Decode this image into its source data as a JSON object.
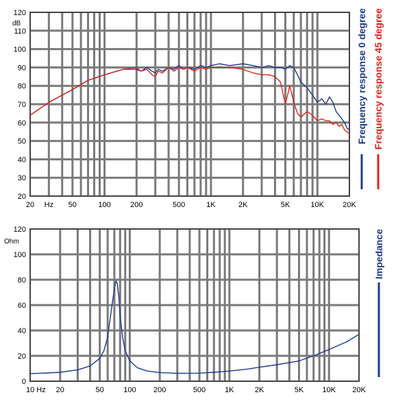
{
  "colors": {
    "frame": "#444444",
    "grid": "#7a7a7a",
    "background": "#ffffff",
    "blue": "#1f3a8f",
    "red": "#e0241c"
  },
  "chart_data": [
    {
      "type": "line",
      "x_scale": "log",
      "y_unit": "dB",
      "xlim": [
        20,
        20000
      ],
      "ylim": [
        20,
        120
      ],
      "y_ticks": [
        20,
        30,
        40,
        50,
        60,
        70,
        80,
        90,
        100,
        110,
        120
      ],
      "x_tick_labels": [
        {
          "x": 20,
          "label": "20"
        },
        {
          "x": 30,
          "label": "Hz"
        },
        {
          "x": 50,
          "label": "50"
        },
        {
          "x": 100,
          "label": "100"
        },
        {
          "x": 200,
          "label": "200"
        },
        {
          "x": 500,
          "label": "500"
        },
        {
          "x": 1000,
          "label": "1K"
        },
        {
          "x": 2000,
          "label": "2K"
        },
        {
          "x": 5000,
          "label": "5K"
        },
        {
          "x": 10000,
          "label": "10K"
        },
        {
          "x": 20000,
          "label": "20K"
        }
      ],
      "grid": true,
      "legend_position": "right",
      "series": [
        {
          "name": "Frequency response 0 degree",
          "color": "#1f3a8f",
          "x": [
            20,
            30,
            50,
            70,
            100,
            150,
            200,
            220,
            250,
            280,
            300,
            320,
            350,
            400,
            450,
            500,
            550,
            600,
            700,
            800,
            900,
            1000,
            1200,
            1500,
            2000,
            2500,
            3000,
            3500,
            4000,
            4500,
            5000,
            5500,
            6000,
            6500,
            7000,
            8000,
            9000,
            10000,
            11000,
            12000,
            13000,
            14000,
            15000,
            16000,
            17000,
            18000,
            19000,
            20000
          ],
          "y": [
            64,
            71,
            78,
            83,
            86,
            89,
            89,
            88,
            90,
            88,
            87,
            89,
            88,
            90,
            89,
            91,
            89,
            90,
            89,
            91,
            90,
            91,
            92,
            91,
            92,
            91,
            90,
            91,
            90,
            90,
            89,
            91,
            90,
            86,
            82,
            79,
            75,
            71,
            73,
            70,
            74,
            71,
            66,
            64,
            62,
            60,
            57,
            56
          ]
        },
        {
          "name": "Frequency response 45 degree",
          "color": "#e0241c",
          "x": [
            20,
            30,
            50,
            70,
            100,
            150,
            200,
            220,
            250,
            280,
            300,
            320,
            350,
            400,
            450,
            500,
            550,
            600,
            700,
            800,
            900,
            1000,
            1200,
            1500,
            2000,
            2500,
            3000,
            3500,
            4000,
            4500,
            5000,
            5500,
            6000,
            6500,
            7000,
            8000,
            9000,
            10000,
            11000,
            12000,
            13000,
            14000,
            15000,
            16000,
            17000,
            18000,
            19000,
            20000
          ],
          "y": [
            64,
            71,
            78,
            83,
            86,
            89,
            90,
            88,
            89,
            86,
            85,
            88,
            87,
            90,
            88,
            90,
            89,
            90,
            88,
            90,
            89,
            90,
            90,
            90,
            89,
            87,
            86,
            86,
            85,
            82,
            70,
            80,
            71,
            65,
            63,
            66,
            64,
            61,
            62,
            61,
            61,
            59,
            60,
            58,
            59,
            56,
            55,
            54
          ]
        }
      ]
    },
    {
      "type": "line",
      "x_scale": "log",
      "y_unit": "Ohm",
      "xlim": [
        10,
        20000
      ],
      "ylim": [
        0,
        120
      ],
      "y_ticks": [
        0,
        20,
        40,
        60,
        80,
        100,
        120
      ],
      "x_tick_labels": [
        {
          "x": 10,
          "label": "10 Hz"
        },
        {
          "x": 20,
          "label": "20"
        },
        {
          "x": 50,
          "label": "50"
        },
        {
          "x": 100,
          "label": "100"
        },
        {
          "x": 200,
          "label": "200"
        },
        {
          "x": 500,
          "label": "500"
        },
        {
          "x": 1000,
          "label": "1K"
        },
        {
          "x": 2000,
          "label": "2K"
        },
        {
          "x": 5000,
          "label": "5K"
        },
        {
          "x": 10000,
          "label": "10K"
        },
        {
          "x": 20000,
          "label": "20K"
        }
      ],
      "grid": true,
      "legend_position": "right",
      "series": [
        {
          "name": "Impedance",
          "color": "#1f3a8f",
          "x": [
            10,
            15,
            20,
            30,
            40,
            50,
            55,
            60,
            65,
            70,
            73,
            75,
            78,
            80,
            85,
            90,
            100,
            120,
            150,
            200,
            300,
            500,
            700,
            1000,
            1500,
            2000,
            3000,
            5000,
            7000,
            10000,
            15000,
            20000
          ],
          "y": [
            6,
            6.5,
            7,
            9,
            12,
            18,
            24,
            35,
            55,
            73,
            79,
            77,
            65,
            52,
            34,
            24,
            16,
            10.5,
            8,
            6.8,
            6.2,
            6.3,
            7,
            8,
            9.5,
            11,
            13,
            16,
            20,
            25,
            31,
            37
          ]
        }
      ]
    }
  ]
}
